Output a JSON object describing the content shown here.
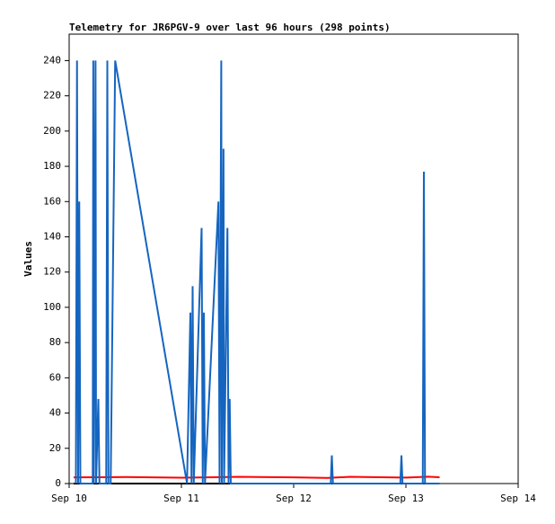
{
  "chart_data": {
    "type": "line",
    "title": "Telemetry for JR6PGV-9 over last 96 hours (298 points)",
    "y_label": "Values",
    "xlim": [
      0,
      4
    ],
    "xticks": [
      {
        "value": 0,
        "label": "Sep 10"
      },
      {
        "value": 1,
        "label": "Sep 11"
      },
      {
        "value": 2,
        "label": "Sep 12"
      },
      {
        "value": 3,
        "label": "Sep 13"
      },
      {
        "value": 4,
        "label": "Sep 14"
      }
    ],
    "ylim": [
      0,
      255
    ],
    "yticks": [
      0,
      20,
      40,
      60,
      80,
      100,
      120,
      140,
      160,
      180,
      200,
      220,
      240
    ],
    "grid": false,
    "series": [
      {
        "color": "#000000",
        "x": [
          0.04,
          1.0,
          2.0,
          3.0,
          3.3
        ],
        "values": [
          0,
          0,
          0,
          0,
          0
        ]
      },
      {
        "color": "#ff0000",
        "x": [
          0.04,
          0.5,
          1.0,
          1.5,
          2.0,
          2.3,
          2.5,
          3.0,
          3.2,
          3.3
        ],
        "values": [
          3.5,
          3.7,
          3.3,
          3.8,
          3.5,
          3.2,
          3.8,
          3.4,
          3.9,
          3.6
        ]
      },
      {
        "color": "#1565c0",
        "x": [
          0.06,
          0.07,
          0.08,
          0.09,
          0.1,
          0.21,
          0.215,
          0.22,
          0.235,
          0.24,
          0.26,
          0.27,
          0.33,
          0.34,
          0.35,
          0.37,
          0.41,
          1.05,
          1.08,
          1.09,
          1.1,
          1.11,
          1.18,
          1.19,
          1.2,
          1.21,
          1.33,
          1.34,
          1.355,
          1.36,
          1.375,
          1.38,
          1.41,
          1.42,
          1.43,
          1.44,
          2.33,
          2.34,
          2.35,
          2.95,
          2.96,
          2.97,
          3.15,
          3.16,
          3.17,
          3.3
        ],
        "values": [
          0,
          240,
          0,
          160,
          0,
          0,
          240,
          0,
          240,
          0,
          48,
          0,
          0,
          240,
          0,
          0,
          240,
          0,
          97,
          0,
          112,
          0,
          145,
          0,
          97,
          0,
          160,
          0,
          240,
          0,
          190,
          0,
          145,
          0,
          48,
          0,
          0,
          16,
          0,
          0,
          16,
          0,
          0,
          177,
          0,
          0
        ]
      }
    ]
  }
}
